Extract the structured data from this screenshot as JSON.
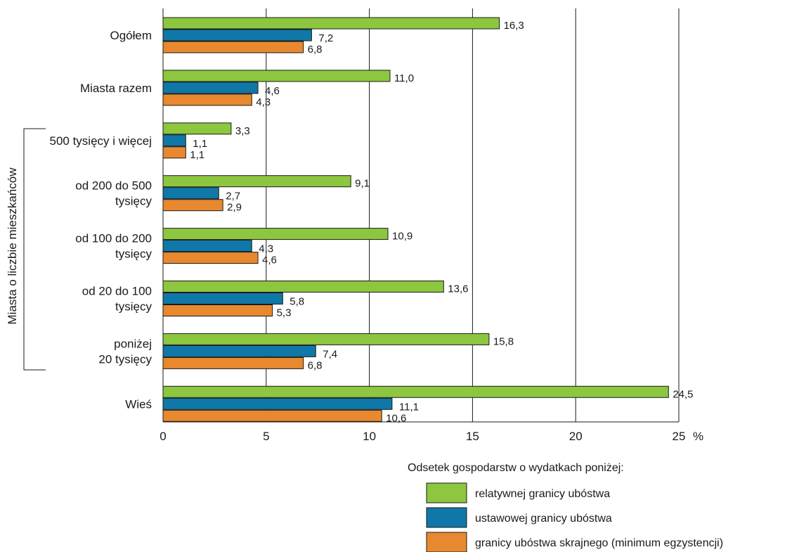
{
  "chart_data": {
    "type": "bar",
    "orientation": "horizontal",
    "categories": [
      "Ogółem",
      "Miasta razem",
      "500 tysięcy i więcej",
      "od 200 do 500 tysięcy",
      "od 100 do 200 tysięcy",
      "od 20 do 100 tysięcy",
      "poniżej 20 tysięcy",
      "Wieś"
    ],
    "category_lines": [
      [
        "Ogółem"
      ],
      [
        "Miasta razem"
      ],
      [
        "500 tysięcy i więcej"
      ],
      [
        "od 200 do 500",
        "tysięcy"
      ],
      [
        "od 100 do 200",
        "tysięcy"
      ],
      [
        "od 20 do 100",
        "tysięcy"
      ],
      [
        "poniżej",
        "20 tysięcy"
      ],
      [
        "Wieś"
      ]
    ],
    "group_label": "Miasta o liczbie mieszkańców",
    "series": [
      {
        "name": "relatywnej granicy ubóstwa",
        "color": "#8dc63f",
        "values": [
          16.3,
          11.0,
          3.3,
          9.1,
          10.9,
          13.6,
          15.8,
          24.5
        ],
        "labels": [
          "16,3",
          "11,0",
          "3,3",
          "9,1",
          "10,9",
          "13,6",
          "15,8",
          "24,5"
        ]
      },
      {
        "name": "ustawowej granicy ubóstwa",
        "color": "#0f78a8",
        "values": [
          7.2,
          4.6,
          1.1,
          2.7,
          4.3,
          5.8,
          7.4,
          11.1
        ],
        "labels": [
          "7,2",
          "4,6",
          "1,1",
          "2,7",
          "4,3",
          "5,8",
          "7,4",
          "11,1"
        ]
      },
      {
        "name": "granicy ubóstwa skrajnego (minimum egzystencji)",
        "color": "#e8892f",
        "values": [
          6.8,
          4.3,
          1.1,
          2.9,
          4.6,
          5.3,
          6.8,
          10.6
        ],
        "labels": [
          "6,8",
          "4,3",
          "1,1",
          "2,9",
          "4,6",
          "5,3",
          "6,8",
          "10,6"
        ]
      }
    ],
    "xlim": [
      0,
      25
    ],
    "xticks": [
      0,
      5,
      10,
      15,
      20,
      25
    ],
    "xtick_labels": [
      "0",
      "5",
      "10",
      "15",
      "20",
      "25"
    ],
    "x_unit": "%",
    "grid": true,
    "legend_title": "Odsetek gospodarstw o wydatkach poniżej:",
    "legend_position": "bottom-right"
  }
}
